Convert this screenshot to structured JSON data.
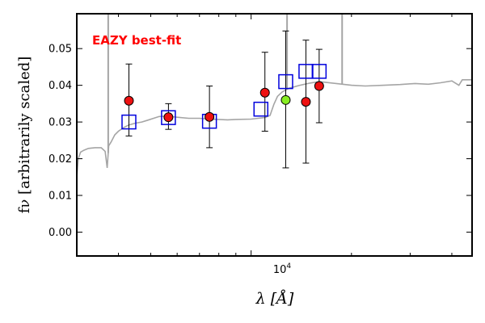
{
  "chart_data": {
    "type": "scatter",
    "title": "",
    "annotation": "EAZY best-fit",
    "annotation_color": "#ff0000",
    "xlabel": "λ [Å]",
    "ylabel": "fν [arbitrarily scaled]",
    "x_scale": "log",
    "xlim": [
      3000,
      46000
    ],
    "ylim": [
      -0.0065,
      0.0595
    ],
    "yticks": [
      0.0,
      0.01,
      0.02,
      0.03,
      0.04,
      0.05
    ],
    "ytick_labels": [
      "0.00",
      "0.01",
      "0.02",
      "0.03",
      "0.04",
      "0.05"
    ],
    "xtick_major": [
      10000
    ],
    "xtick_major_label": "10⁴",
    "xtick_minor": [
      4000,
      5000,
      6000,
      7000,
      8000,
      9000,
      20000,
      30000,
      40000
    ],
    "grid": false,
    "legend": "none",
    "colors": {
      "template": "#a5a5a5",
      "model": "#0000dd",
      "observed": "#ee1111",
      "highlight": "#88ee22",
      "errorbar": "#000000"
    },
    "template_spectrum": {
      "name": "template",
      "points": [
        [
          3000,
          0.015
        ],
        [
          3030,
          0.02
        ],
        [
          3080,
          0.0218
        ],
        [
          3150,
          0.0223
        ],
        [
          3250,
          0.0228
        ],
        [
          3400,
          0.023
        ],
        [
          3550,
          0.023
        ],
        [
          3650,
          0.022
        ],
        [
          3700,
          0.0175
        ],
        [
          3740,
          0.0235
        ],
        [
          3800,
          0.0245
        ],
        [
          3900,
          0.0265
        ],
        [
          4000,
          0.0275
        ],
        [
          4150,
          0.0285
        ],
        [
          4300,
          0.0292
        ],
        [
          4500,
          0.0297
        ],
        [
          4700,
          0.03
        ],
        [
          4900,
          0.0305
        ],
        [
          5100,
          0.031
        ],
        [
          5300,
          0.0315
        ],
        [
          5600,
          0.0316
        ],
        [
          6000,
          0.0313
        ],
        [
          6500,
          0.031
        ],
        [
          7000,
          0.031
        ],
        [
          7500,
          0.0308
        ],
        [
          8000,
          0.0307
        ],
        [
          8500,
          0.0306
        ],
        [
          9000,
          0.0307
        ],
        [
          10000,
          0.0308
        ],
        [
          10500,
          0.031
        ],
        [
          11000,
          0.0312
        ],
        [
          11400,
          0.0318
        ],
        [
          11700,
          0.0348
        ],
        [
          12000,
          0.037
        ],
        [
          12400,
          0.0382
        ],
        [
          13000,
          0.0392
        ],
        [
          14000,
          0.04
        ],
        [
          15000,
          0.0406
        ],
        [
          16000,
          0.041
        ],
        [
          18000,
          0.0405
        ],
        [
          20000,
          0.04
        ],
        [
          22000,
          0.0398
        ],
        [
          25000,
          0.04
        ],
        [
          28000,
          0.0402
        ],
        [
          31000,
          0.0405
        ],
        [
          34000,
          0.0403
        ],
        [
          37000,
          0.0407
        ],
        [
          40000,
          0.0412
        ],
        [
          42000,
          0.04
        ],
        [
          43000,
          0.0415
        ],
        [
          46000,
          0.0415
        ]
      ],
      "emission_lines": [
        {
          "x": 3727,
          "y": 0.0595
        },
        {
          "x": 12818,
          "y": 0.0595
        },
        {
          "x": 18751,
          "y": 0.0595
        },
        {
          "x": 20000,
          "y": 0.04
        }
      ]
    },
    "model_photometry": {
      "name": "model",
      "marker": "open-square",
      "points": [
        [
          4300,
          0.03
        ],
        [
          5650,
          0.0312
        ],
        [
          7500,
          0.0302
        ],
        [
          10700,
          0.0335
        ],
        [
          12700,
          0.041
        ],
        [
          14600,
          0.0438
        ],
        [
          16000,
          0.0438
        ]
      ]
    },
    "observed_photometry": {
      "name": "observed",
      "marker": "filled-circle",
      "points": [
        {
          "x": 4300,
          "y": 0.0358,
          "ylow": 0.0262,
          "yhigh": 0.0458,
          "highlight": false
        },
        {
          "x": 5650,
          "y": 0.0313,
          "ylow": 0.028,
          "yhigh": 0.035,
          "highlight": false
        },
        {
          "x": 7500,
          "y": 0.0314,
          "ylow": 0.023,
          "yhigh": 0.0398,
          "highlight": false
        },
        {
          "x": 11000,
          "y": 0.038,
          "ylow": 0.0275,
          "yhigh": 0.049,
          "highlight": false
        },
        {
          "x": 12700,
          "y": 0.036,
          "ylow": 0.0175,
          "yhigh": 0.0548,
          "highlight": true
        },
        {
          "x": 14600,
          "y": 0.0355,
          "ylow": 0.0188,
          "yhigh": 0.0523,
          "highlight": false
        },
        {
          "x": 16000,
          "y": 0.0398,
          "ylow": 0.0298,
          "yhigh": 0.0498,
          "highlight": false
        }
      ]
    }
  }
}
